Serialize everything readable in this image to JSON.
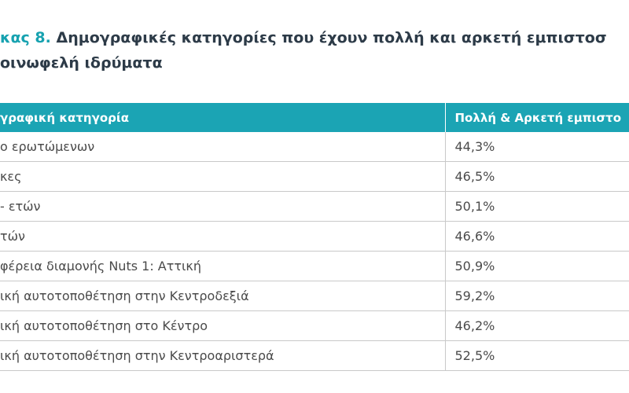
{
  "header": {
    "title_prefix": "κας 8.",
    "title_line1": "Δημογραφικές κατηγορίες που έχουν πολλή και αρκετή εμπιστοσ",
    "title_line2": "οινωφελή ιδρύματα"
  },
  "table": {
    "columns": [
      "γραφική κατηγορία",
      "Πολλή & Αρκετή εμπιστο"
    ],
    "rows": [
      [
        "ο ερωτώμενων",
        "44,3%"
      ],
      [
        "κες",
        "46,5%"
      ],
      [
        "- ετών",
        "50,1%"
      ],
      [
        "τών",
        "46,6%"
      ],
      [
        "φέρεια διαμονής Nuts 1: Αττική",
        "50,9%"
      ],
      [
        "ική αυτοτοποθέτηση στην Κεντροδεξιά",
        "59,2%"
      ],
      [
        "ική αυτοτοποθέτηση στο Κέντρο",
        "46,2%"
      ],
      [
        "ική αυτοτοποθέτηση στην Κεντροαριστερά",
        "52,5%"
      ]
    ]
  }
}
